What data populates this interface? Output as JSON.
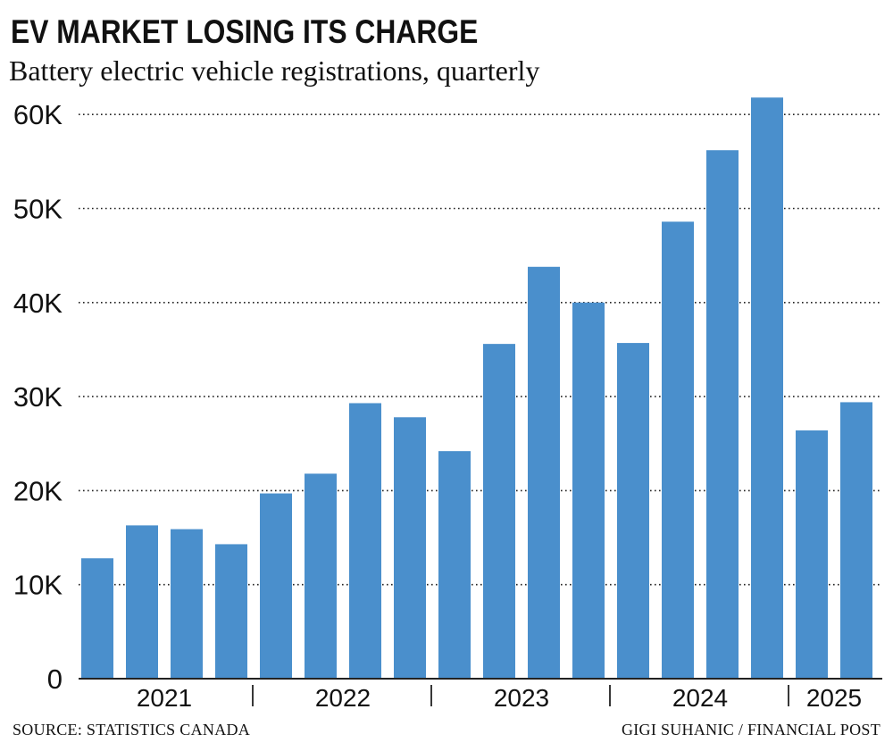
{
  "title": "EV MARKET LOSING ITS CHARGE",
  "subtitle": "Battery electric vehicle registrations, quarterly",
  "source": "SOURCE: STATISTICS CANADA",
  "credit": "GIGI SUHANIC / FINANCIAL POST",
  "colors": {
    "bar": "#4a8fcc",
    "grid": "#222222",
    "text": "#111111"
  },
  "chart_data": {
    "type": "bar",
    "categories": [
      "2021 Q1",
      "2021 Q2",
      "2021 Q3",
      "2021 Q4",
      "2022 Q1",
      "2022 Q2",
      "2022 Q3",
      "2022 Q4",
      "2023 Q1",
      "2023 Q2",
      "2023 Q3",
      "2023 Q4",
      "2024 Q1",
      "2024 Q2",
      "2024 Q3",
      "2024 Q4",
      "2025 Q1",
      "2025 Q2"
    ],
    "values": [
      12800,
      16300,
      15900,
      14300,
      19700,
      21800,
      29300,
      27800,
      24200,
      35600,
      43800,
      40000,
      35700,
      48600,
      56200,
      61800,
      26400,
      29400
    ],
    "year_labels": [
      "2021",
      "2022",
      "2023",
      "2024",
      "2025"
    ],
    "y_tick_labels": [
      "0",
      "10K",
      "20K",
      "30K",
      "40K",
      "50K",
      "60K"
    ],
    "y_ticks": [
      0,
      10000,
      20000,
      30000,
      40000,
      50000,
      60000
    ],
    "ylim": [
      0,
      62000
    ],
    "grid": "dotted horizontal",
    "legend": "none"
  }
}
